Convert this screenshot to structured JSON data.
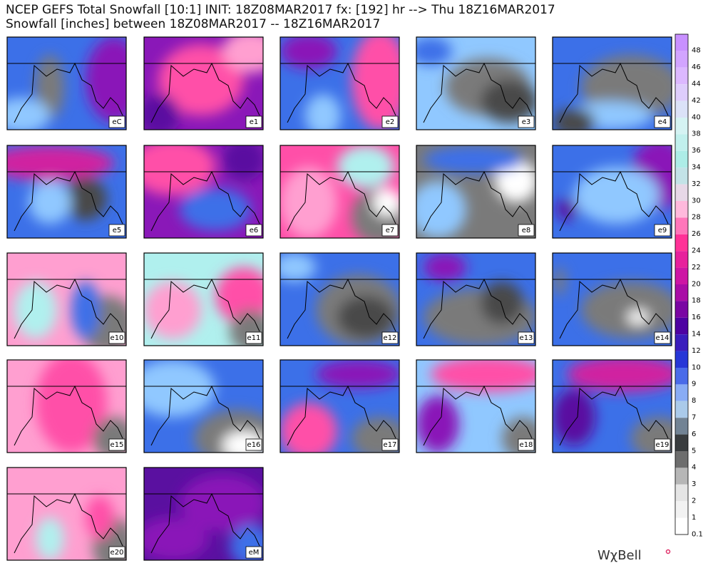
{
  "header": {
    "line1": "NCEP GEFS Total Snowfall [10:1] INIT: 18Z08MAR2017 fx: [192] hr --> Thu 18Z16MAR2017",
    "line2": "Snowfall [inches] between 18Z08MAR2017 -- 18Z16MAR2017"
  },
  "panels": [
    "eC",
    "e1",
    "e2",
    "e3",
    "e4",
    "e5",
    "e6",
    "e7",
    "e8",
    "e9",
    "e10",
    "e11",
    "e12",
    "e13",
    "e14",
    "e15",
    "e16",
    "e17",
    "e18",
    "e19",
    "e20",
    "eM"
  ],
  "colorbar": {
    "labels": [
      48,
      46,
      44,
      42,
      40,
      38,
      36,
      34,
      32,
      30,
      28,
      26,
      24,
      22,
      20,
      18,
      16,
      14,
      12,
      10,
      9,
      8,
      7,
      6,
      5,
      4,
      3,
      2,
      1,
      0.1
    ]
  },
  "logo": "WχBell"
}
